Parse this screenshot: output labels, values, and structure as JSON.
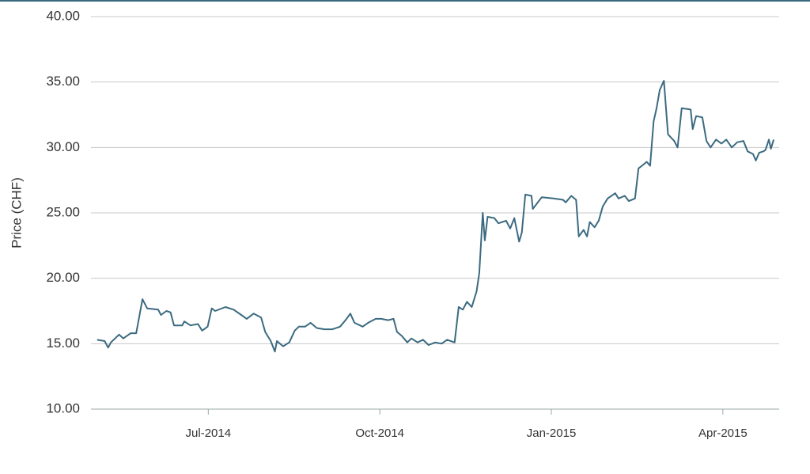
{
  "chart_data": {
    "type": "line",
    "y_label": "Price (CHF)",
    "x": [
      2014.338,
      2014.349,
      2014.354,
      2014.358,
      2014.37,
      2014.376,
      2014.387,
      2014.395,
      2014.404,
      2014.411,
      2014.427,
      2014.431,
      2014.439,
      2014.445,
      2014.45,
      2014.462,
      2014.465,
      2014.474,
      2014.485,
      2014.491,
      2014.499,
      2014.505,
      2014.51,
      2014.525,
      2014.537,
      2014.548,
      2014.556,
      2014.566,
      2014.577,
      2014.583,
      2014.591,
      2014.597,
      2014.6,
      2014.609,
      2014.618,
      2014.626,
      2014.632,
      2014.641,
      2014.649,
      2014.658,
      2014.669,
      2014.681,
      2014.692,
      2014.7,
      2014.707,
      2014.713,
      2014.725,
      2014.733,
      2014.744,
      2014.752,
      2014.762,
      2014.77,
      2014.775,
      2014.782,
      2014.79,
      2014.796,
      2014.805,
      2014.813,
      2014.821,
      2014.831,
      2014.84,
      2014.848,
      2014.859,
      2014.865,
      2014.871,
      2014.877,
      2014.884,
      2014.891,
      2014.895,
      2014.9,
      2014.903,
      2014.907,
      2014.917,
      2014.923,
      2014.934,
      2014.94,
      2014.946,
      2014.953,
      2014.957,
      2014.962,
      2014.971,
      2014.973,
      2014.986,
      2015.003,
      2015.017,
      2015.021,
      2015.029,
      2015.036,
      2015.04,
      2015.047,
      2015.052,
      2015.056,
      2015.063,
      2015.069,
      2015.075,
      2015.082,
      2015.093,
      2015.098,
      2015.107,
      2015.113,
      2015.122,
      2015.127,
      2015.132,
      2015.139,
      2015.144,
      2015.149,
      2015.153,
      2015.158,
      2015.164,
      2015.17,
      2015.179,
      2015.184,
      2015.19,
      2015.203,
      2015.206,
      2015.211,
      2015.22,
      2015.226,
      2015.232,
      2015.24,
      2015.248,
      2015.255,
      2015.263,
      2015.271,
      2015.28,
      2015.286,
      2015.294,
      2015.298,
      2015.303,
      2015.309,
      2015.312,
      2015.317,
      2015.32,
      2015.324
    ],
    "series": [
      {
        "color": "#3b6a80",
        "values": [
          15.3,
          15.2,
          14.7,
          15.1,
          15.7,
          15.4,
          15.8,
          15.8,
          18.4,
          17.7,
          17.6,
          17.2,
          17.5,
          17.4,
          16.4,
          16.4,
          16.7,
          16.4,
          16.5,
          16.0,
          16.3,
          17.7,
          17.5,
          17.8,
          17.6,
          17.2,
          16.9,
          17.3,
          17.0,
          15.9,
          15.2,
          14.4,
          15.2,
          14.8,
          15.1,
          16.0,
          16.3,
          16.3,
          16.6,
          16.2,
          16.1,
          16.1,
          16.3,
          16.8,
          17.3,
          16.6,
          16.3,
          16.6,
          16.9,
          16.9,
          16.8,
          16.9,
          15.9,
          15.6,
          15.1,
          15.4,
          15.1,
          15.3,
          14.9,
          15.1,
          15.0,
          15.3,
          15.1,
          17.8,
          17.6,
          18.2,
          17.8,
          19.0,
          20.4,
          25.0,
          22.9,
          24.7,
          24.6,
          24.2,
          24.4,
          23.8,
          24.6,
          22.8,
          23.5,
          26.4,
          26.3,
          25.3,
          26.2,
          26.1,
          26.0,
          25.8,
          26.3,
          26.0,
          23.2,
          23.7,
          23.2,
          24.3,
          23.9,
          24.4,
          25.5,
          26.1,
          26.5,
          26.1,
          26.3,
          25.9,
          26.1,
          28.4,
          28.6,
          28.9,
          28.6,
          32.0,
          32.9,
          34.4,
          35.1,
          31.0,
          30.5,
          30.0,
          33.0,
          32.9,
          31.4,
          32.4,
          32.3,
          30.5,
          30.0,
          30.6,
          30.3,
          30.6,
          30.0,
          30.4,
          30.5,
          29.7,
          29.5,
          29.0,
          29.6,
          29.7,
          29.8,
          30.6,
          29.9,
          30.6
        ]
      }
    ],
    "xlim": [
      2014.329,
      2015.332
    ],
    "xticks": [
      {
        "value": 2014.5,
        "label": "Jul-2014"
      },
      {
        "value": 2014.75,
        "label": "Oct-2014"
      },
      {
        "value": 2015.0,
        "label": "Jan-2015"
      },
      {
        "value": 2015.25,
        "label": "Apr-2015"
      }
    ],
    "ylim": [
      10,
      40
    ],
    "yticks": [
      {
        "value": 10,
        "label": "10.00"
      },
      {
        "value": 15,
        "label": "15.00"
      },
      {
        "value": 20,
        "label": "20.00"
      },
      {
        "value": 25,
        "label": "25.00"
      },
      {
        "value": 30,
        "label": "30.00"
      },
      {
        "value": 35,
        "label": "35.00"
      },
      {
        "value": 40,
        "label": "40.00"
      }
    ],
    "grid": true
  }
}
